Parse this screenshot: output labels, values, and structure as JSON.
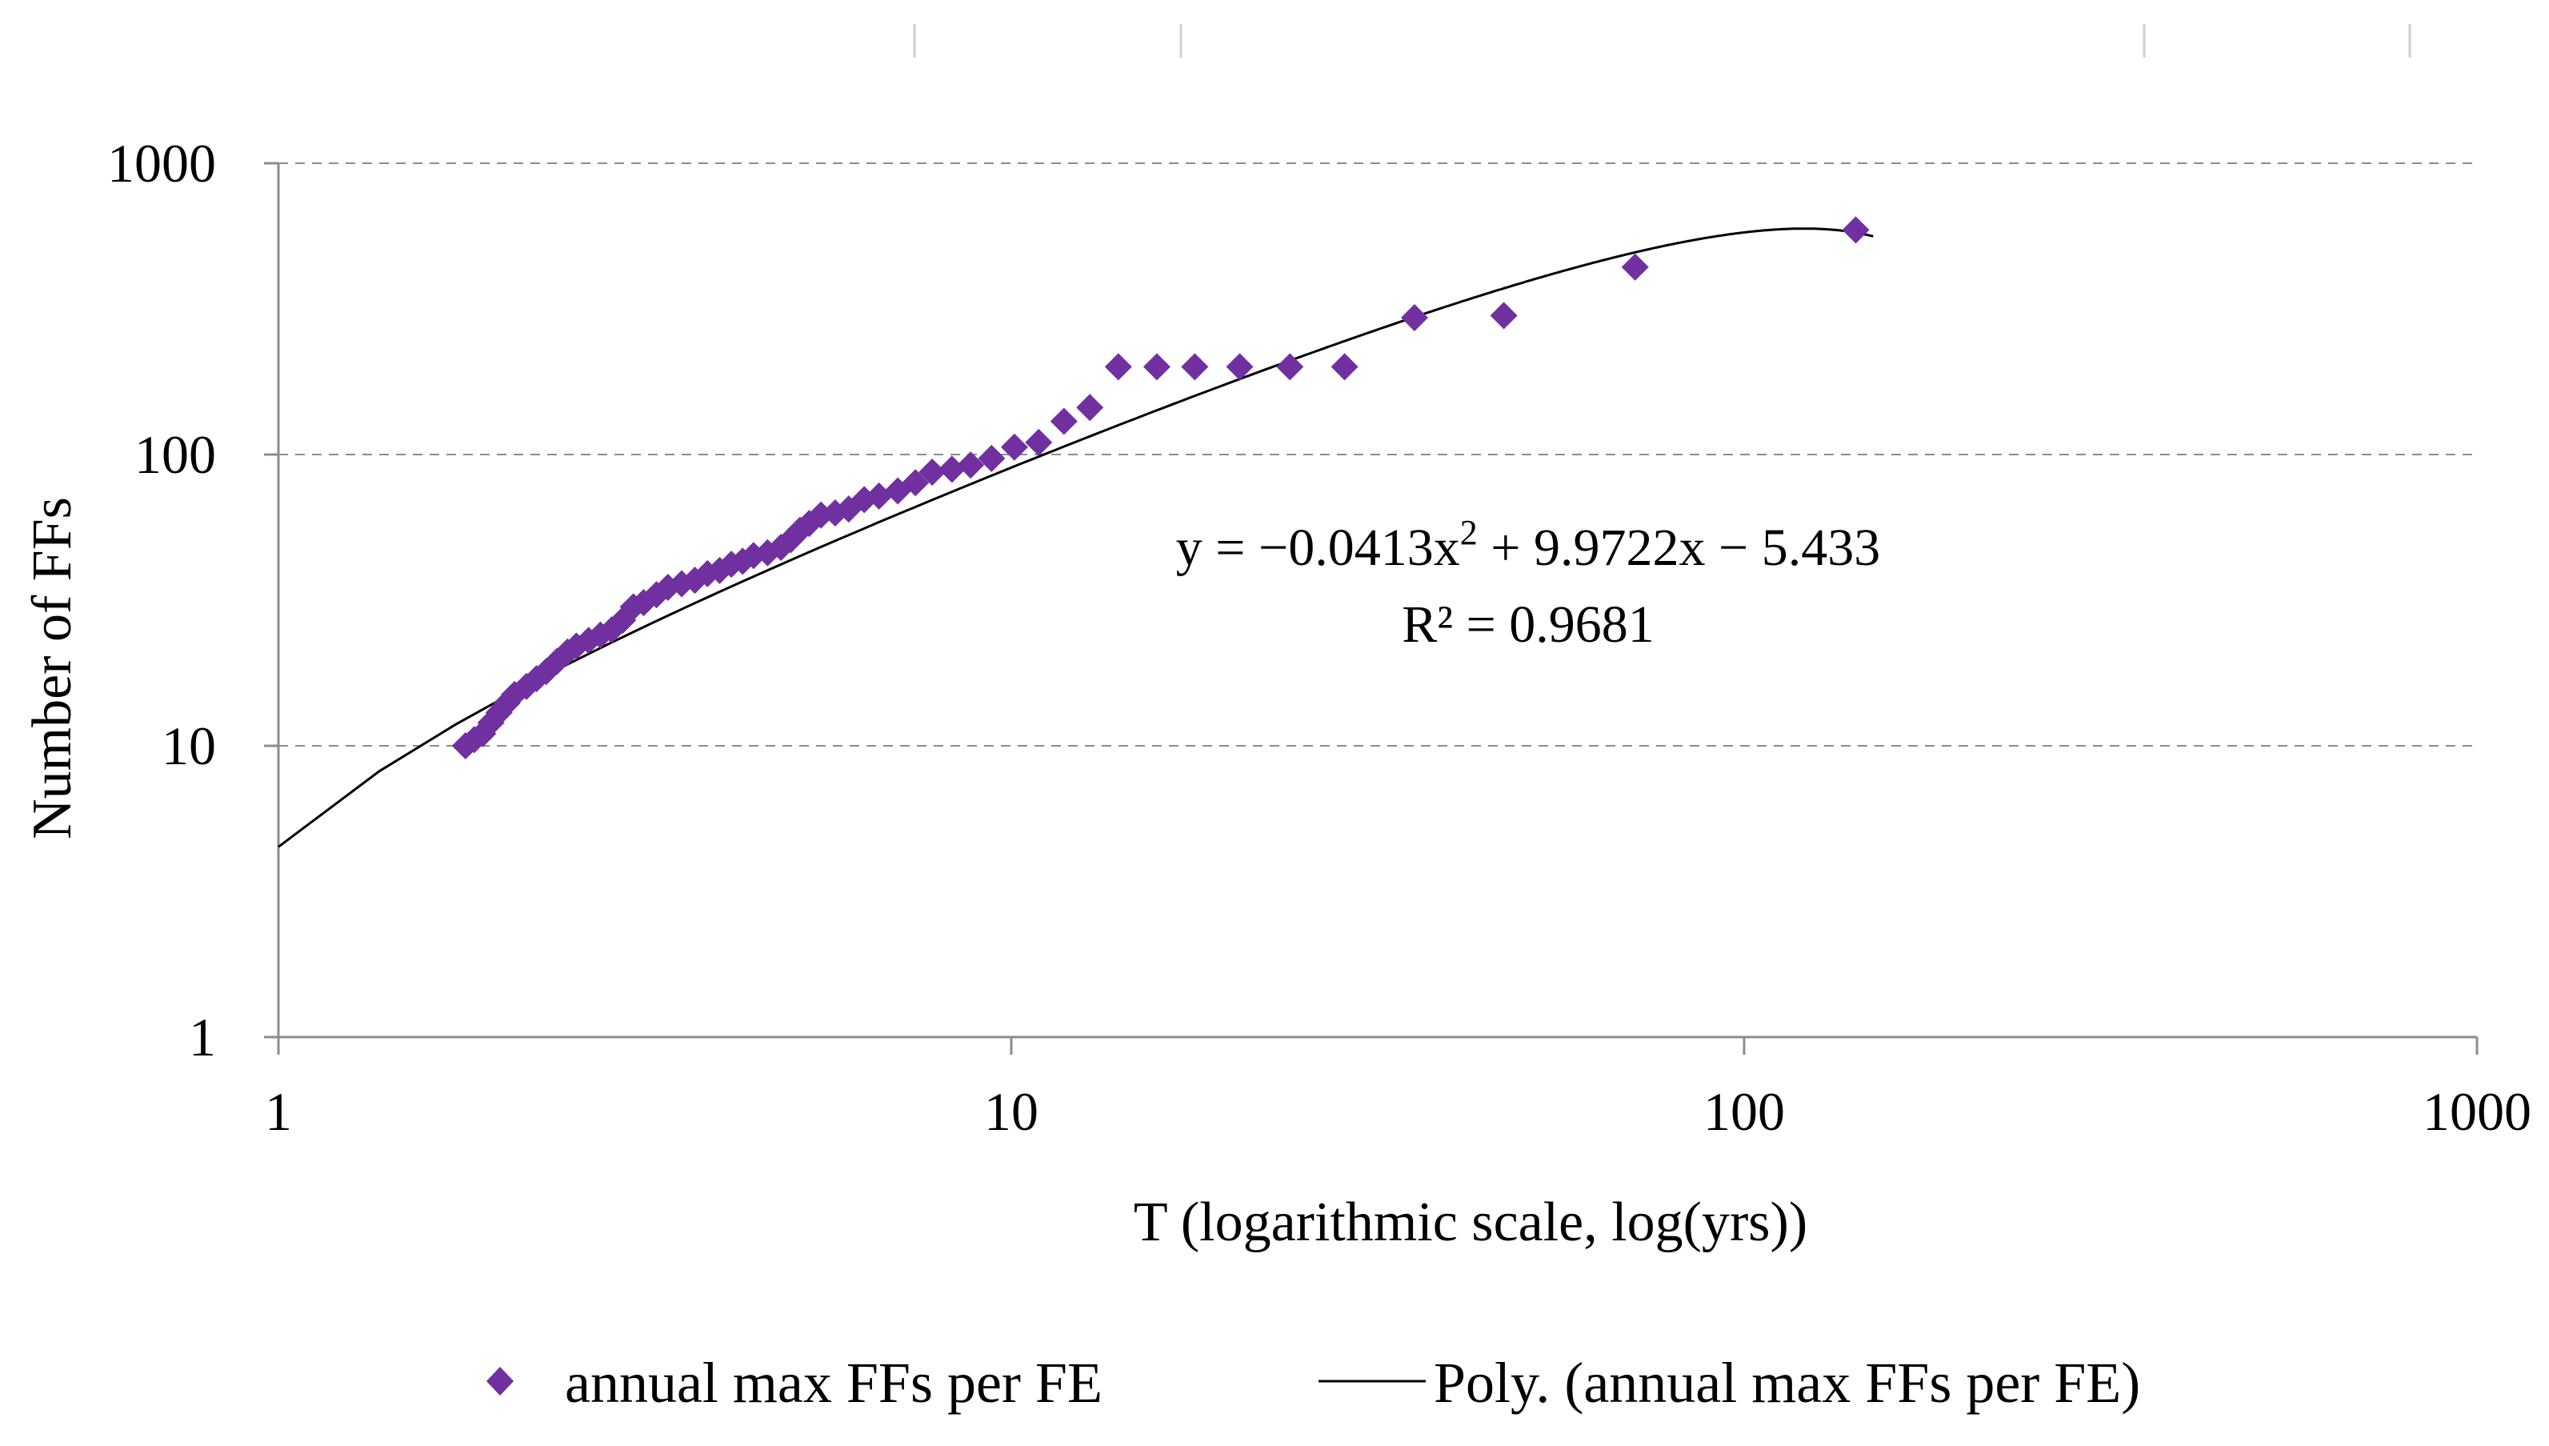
{
  "chart_data": {
    "type": "scatter",
    "title": "",
    "xlabel": "T (logarithmic scale, log(yrs))",
    "ylabel": "Number of FFs",
    "x_scale": "log",
    "y_scale": "log",
    "xlim": [
      1,
      1000
    ],
    "ylim": [
      1,
      1000
    ],
    "x_ticks": [
      "1",
      "10",
      "100",
      "1000"
    ],
    "y_ticks": [
      "1",
      "10",
      "100",
      "1000"
    ],
    "grid": "horizontal dashed",
    "legend_position": "bottom",
    "marker_color": "#7030A0",
    "line_color": "#000000",
    "series": [
      {
        "name": "annual max FFs per FE",
        "kind": "scatter",
        "marker": "diamond",
        "points": [
          [
            1.8,
            10
          ],
          [
            1.85,
            10.5
          ],
          [
            1.9,
            11
          ],
          [
            1.95,
            12
          ],
          [
            2.0,
            13
          ],
          [
            2.05,
            14
          ],
          [
            2.1,
            15
          ],
          [
            2.18,
            16
          ],
          [
            2.25,
            17
          ],
          [
            2.32,
            18
          ],
          [
            2.4,
            19.5
          ],
          [
            2.48,
            21
          ],
          [
            2.55,
            22
          ],
          [
            2.65,
            23
          ],
          [
            2.75,
            24
          ],
          [
            2.85,
            25
          ],
          [
            2.95,
            27
          ],
          [
            3.05,
            30
          ],
          [
            3.15,
            31
          ],
          [
            3.28,
            33
          ],
          [
            3.4,
            35
          ],
          [
            3.55,
            36
          ],
          [
            3.7,
            37
          ],
          [
            3.85,
            39
          ],
          [
            4.0,
            40
          ],
          [
            4.15,
            42
          ],
          [
            4.3,
            43
          ],
          [
            4.45,
            45
          ],
          [
            4.65,
            46
          ],
          [
            4.85,
            48
          ],
          [
            5.0,
            51
          ],
          [
            5.15,
            55
          ],
          [
            5.3,
            58
          ],
          [
            5.5,
            62
          ],
          [
            5.75,
            63
          ],
          [
            6.0,
            65
          ],
          [
            6.3,
            70
          ],
          [
            6.6,
            72
          ],
          [
            7.0,
            75
          ],
          [
            7.4,
            80
          ],
          [
            7.8,
            87
          ],
          [
            8.3,
            89
          ],
          [
            8.8,
            92
          ],
          [
            9.4,
            97
          ],
          [
            10.1,
            106
          ],
          [
            10.9,
            110
          ],
          [
            11.8,
            130
          ],
          [
            12.8,
            145
          ],
          [
            14.0,
            200
          ],
          [
            15.8,
            200
          ],
          [
            17.8,
            200
          ],
          [
            20.5,
            200
          ],
          [
            24.0,
            200
          ],
          [
            28.5,
            200
          ],
          [
            35.5,
            295
          ],
          [
            47.0,
            300
          ],
          [
            71.0,
            440
          ],
          [
            142.0,
            590
          ]
        ]
      },
      {
        "name": "Poly. (annual max FFs per FE)",
        "kind": "line",
        "coefficients": [
          -0.0413,
          9.9722,
          -5.433
        ],
        "x_range": [
          1,
          150
        ]
      }
    ],
    "annotations": {
      "equation_prefix": "y = −0.0413x",
      "equation_exponent": "2",
      "equation_suffix": " + 9.9722x − 5.433",
      "r_squared": "R² = 0.9681"
    }
  }
}
